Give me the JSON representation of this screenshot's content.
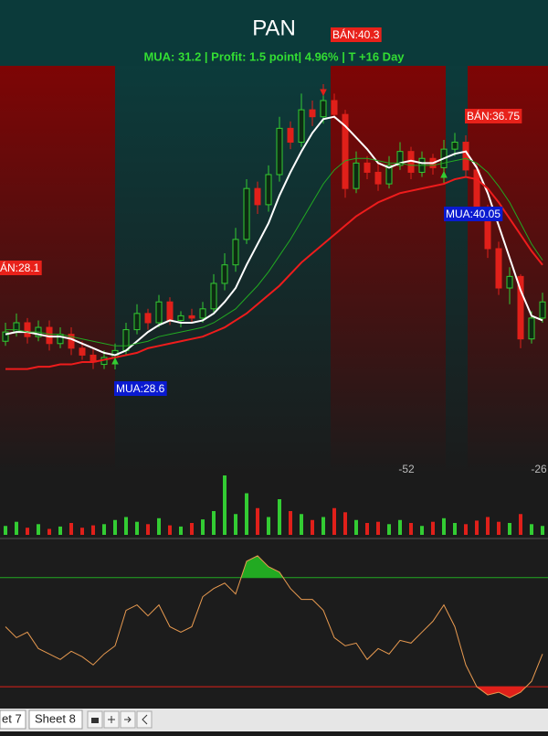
{
  "chart_data": {
    "type": "candlestick",
    "title": "PAN",
    "subtitle": "MUA:  31.2 | Profit: 1.5 point| 4.96% | T +16 Day",
    "ylim": [
      24,
      41.5
    ],
    "up_color": "#33cc33",
    "down_color": "#e0201a",
    "open": [
      29.6,
      30.0,
      30.4,
      29.8,
      30.2,
      29.5,
      29.9,
      29.3,
      29.0,
      28.6,
      28.9,
      29.2,
      30.1,
      30.8,
      30.4,
      31.3,
      30.5,
      30.7,
      30.6,
      31.0,
      32.1,
      32.9,
      34.0,
      36.2,
      35.5,
      36.8,
      38.8,
      38.2,
      39.6,
      39.3,
      40.0,
      39.4,
      36.2,
      37.3,
      36.9,
      36.4,
      37.2,
      37.8,
      36.9,
      37.5,
      37.1,
      37.9,
      38.2,
      37.0,
      35.1,
      33.6,
      31.9,
      32.4,
      29.7,
      30.6
    ],
    "high": [
      30.4,
      30.8,
      30.6,
      30.5,
      30.5,
      30.2,
      30.2,
      29.6,
      29.3,
      29.2,
      29.5,
      30.4,
      31.2,
      31.0,
      31.6,
      31.5,
      30.9,
      31.0,
      31.3,
      32.5,
      33.4,
      34.5,
      36.6,
      36.5,
      37.2,
      39.3,
      39.1,
      40.3,
      40.0,
      40.6,
      40.3,
      39.6,
      37.8,
      37.6,
      37.3,
      37.6,
      38.2,
      38.0,
      37.8,
      37.7,
      38.3,
      38.6,
      38.5,
      37.3,
      35.5,
      33.9,
      32.8,
      32.5,
      30.9,
      31.7
    ],
    "low": [
      29.4,
      29.8,
      29.5,
      29.6,
      29.2,
      29.3,
      29.0,
      28.8,
      28.4,
      28.4,
      28.7,
      29.0,
      29.9,
      30.1,
      30.2,
      30.3,
      30.2,
      30.4,
      30.4,
      30.8,
      31.8,
      32.6,
      33.8,
      35.1,
      35.2,
      36.5,
      37.9,
      38.0,
      38.9,
      39.0,
      39.2,
      35.8,
      36.0,
      36.6,
      36.1,
      36.2,
      37.0,
      36.6,
      36.7,
      36.8,
      36.9,
      37.6,
      36.7,
      34.8,
      33.2,
      31.6,
      31.2,
      29.3,
      29.5,
      30.4
    ],
    "close": [
      30.0,
      30.4,
      29.8,
      30.2,
      29.5,
      29.9,
      29.3,
      29.0,
      28.7,
      28.9,
      29.2,
      30.1,
      30.8,
      30.4,
      31.3,
      30.5,
      30.7,
      30.6,
      31.0,
      32.1,
      32.9,
      34.0,
      36.2,
      35.5,
      36.8,
      38.8,
      38.2,
      39.6,
      39.3,
      40.0,
      39.4,
      36.2,
      37.3,
      36.9,
      36.4,
      37.2,
      37.8,
      36.9,
      37.5,
      37.1,
      37.9,
      38.2,
      37.0,
      35.1,
      33.6,
      31.9,
      32.4,
      29.7,
      30.6,
      31.3
    ],
    "lines": [
      {
        "color": "#ffffff",
        "width": 2,
        "values": [
          29.9,
          30.0,
          30.0,
          29.9,
          29.8,
          29.8,
          29.7,
          29.5,
          29.3,
          29.1,
          29.0,
          29.2,
          29.6,
          30.0,
          30.3,
          30.5,
          30.4,
          30.4,
          30.5,
          30.8,
          31.3,
          31.9,
          32.9,
          33.8,
          34.7,
          35.9,
          36.9,
          37.8,
          38.6,
          39.2,
          39.3,
          38.9,
          38.4,
          37.9,
          37.3,
          37.1,
          37.3,
          37.4,
          37.3,
          37.3,
          37.5,
          37.7,
          37.8,
          37.1,
          36.0,
          34.6,
          33.2,
          31.8,
          30.7,
          30.5
        ]
      },
      {
        "color": "#22aa22",
        "width": 1,
        "values": [
          30.1,
          30.1,
          30.0,
          30.0,
          29.9,
          29.9,
          29.8,
          29.7,
          29.6,
          29.5,
          29.4,
          29.4,
          29.5,
          29.6,
          29.8,
          29.9,
          30.0,
          30.1,
          30.2,
          30.4,
          30.7,
          31.0,
          31.5,
          32.0,
          32.6,
          33.3,
          34.0,
          34.8,
          35.6,
          36.4,
          37.0,
          37.4,
          37.5,
          37.5,
          37.4,
          37.3,
          37.3,
          37.2,
          37.2,
          37.2,
          37.3,
          37.4,
          37.5,
          37.3,
          36.9,
          36.3,
          35.6,
          34.7,
          33.8,
          33.1
        ]
      },
      {
        "color": "#ee1c1c",
        "width": 2,
        "values": [
          28.4,
          28.4,
          28.4,
          28.5,
          28.5,
          28.6,
          28.6,
          28.7,
          28.7,
          28.8,
          28.9,
          29.0,
          29.1,
          29.3,
          29.4,
          29.5,
          29.6,
          29.7,
          29.8,
          30.0,
          30.2,
          30.5,
          30.8,
          31.2,
          31.6,
          32.0,
          32.5,
          33.0,
          33.4,
          33.8,
          34.2,
          34.6,
          35.0,
          35.3,
          35.6,
          35.8,
          36.0,
          36.1,
          36.2,
          36.3,
          36.4,
          36.6,
          36.7,
          36.6,
          36.2,
          35.6,
          34.9,
          34.2,
          33.5,
          32.9
        ]
      }
    ],
    "signals": [
      "ÁN:28.1",
      "MUA:28.6",
      "BÁN:40.3",
      "MUA:40.05",
      "BÁN:36.75"
    ],
    "offset_labels": [
      -52,
      -26
    ],
    "volume": [
      15,
      22,
      12,
      18,
      10,
      14,
      20,
      12,
      16,
      18,
      25,
      30,
      22,
      18,
      28,
      16,
      14,
      20,
      26,
      40,
      100,
      35,
      70,
      45,
      30,
      60,
      40,
      35,
      25,
      30,
      45,
      38,
      25,
      20,
      22,
      18,
      25,
      20,
      15,
      22,
      28,
      20,
      18,
      24,
      30,
      22,
      20,
      35,
      18,
      15
    ],
    "volume_ylim": [
      0,
      100
    ],
    "oscillator": {
      "color": "#e89a50",
      "values": [
        52,
        48,
        50,
        44,
        42,
        40,
        43,
        41,
        38,
        42,
        45,
        58,
        60,
        56,
        60,
        52,
        50,
        52,
        63,
        66,
        68,
        64,
        76,
        78,
        74,
        72,
        66,
        62,
        62,
        58,
        48,
        45,
        46,
        40,
        44,
        42,
        47,
        46,
        50,
        54,
        60,
        52,
        38,
        30,
        27,
        28,
        26,
        28,
        32,
        42
      ],
      "ylim": [
        22,
        84
      ],
      "upper": 70,
      "lower": 30,
      "upper_color": "#22aa22",
      "lower_color": "#e0201a"
    }
  },
  "tabs": [
    "et 7",
    "Sheet 8"
  ]
}
